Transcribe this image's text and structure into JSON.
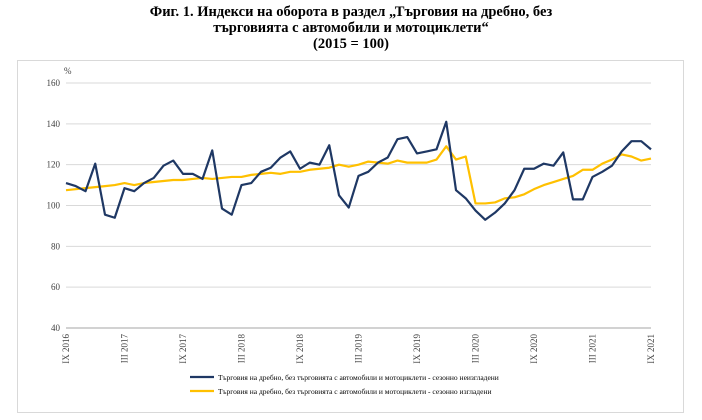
{
  "title": {
    "line1": "Фиг. 1. Индекси на оборота в раздел „Търговия на дребно, без",
    "line2": "търговията с автомобили и мотоциклети“",
    "line3": "(2015 = 100)"
  },
  "chart_data": {
    "type": "line",
    "ylim": [
      40,
      160
    ],
    "yticks": [
      40,
      60,
      80,
      100,
      120,
      140,
      160
    ],
    "ylabel_unit": "%",
    "grid": "horizontal",
    "legend_position": "bottom",
    "x_tick_labels": [
      "IX 2016",
      "III 2017",
      "IX 2017",
      "III 2018",
      "IX 2018",
      "III 2019",
      "IX 2019",
      "III 2020",
      "IX 2020",
      "III 2021",
      "IX 2021"
    ],
    "series": [
      {
        "name": "Търговия на дребно, без търговията с автомобили и мотоциклети - сезонно неизгладени",
        "color": "#1f3864",
        "values": [
          111,
          109.5,
          107,
          120.5,
          95.5,
          94,
          108.5,
          107,
          111,
          113.5,
          119.5,
          122,
          115.5,
          115.5,
          113,
          127,
          98.5,
          95.5,
          110,
          111,
          116.5,
          118.5,
          123.5,
          126.5,
          118,
          121,
          120,
          129.5,
          105,
          99,
          114.5,
          116.5,
          121,
          123.5,
          132.5,
          133.5,
          125.5,
          126.5,
          127.5,
          141,
          107.5,
          103.5,
          97.5,
          93,
          96.5,
          101,
          107.5,
          118,
          118,
          120.5,
          119.5,
          126,
          103,
          103,
          114,
          116.5,
          119.5,
          126.5,
          131.5,
          131.5,
          127.5
        ]
      },
      {
        "name": "Търговия на дребно, без търговията с автомобили и мотоциклети - сезонно изгладени",
        "color": "#ffc000",
        "values": [
          107.5,
          108,
          108.5,
          109,
          109.5,
          110,
          111,
          110,
          111,
          111.5,
          112,
          112.5,
          112.5,
          113,
          113.5,
          113,
          113.5,
          114,
          114,
          115,
          115.5,
          116,
          115.5,
          116.5,
          116.5,
          117.5,
          118,
          118.5,
          120,
          119,
          120,
          121.5,
          121,
          120.5,
          122,
          121,
          121,
          121,
          122.5,
          129,
          122.5,
          124,
          101,
          101,
          101.5,
          103.5,
          104,
          105.5,
          108,
          110,
          111.5,
          113,
          114.5,
          117.5,
          117.5,
          120.5,
          122.5,
          125,
          124,
          122,
          123
        ]
      }
    ]
  }
}
